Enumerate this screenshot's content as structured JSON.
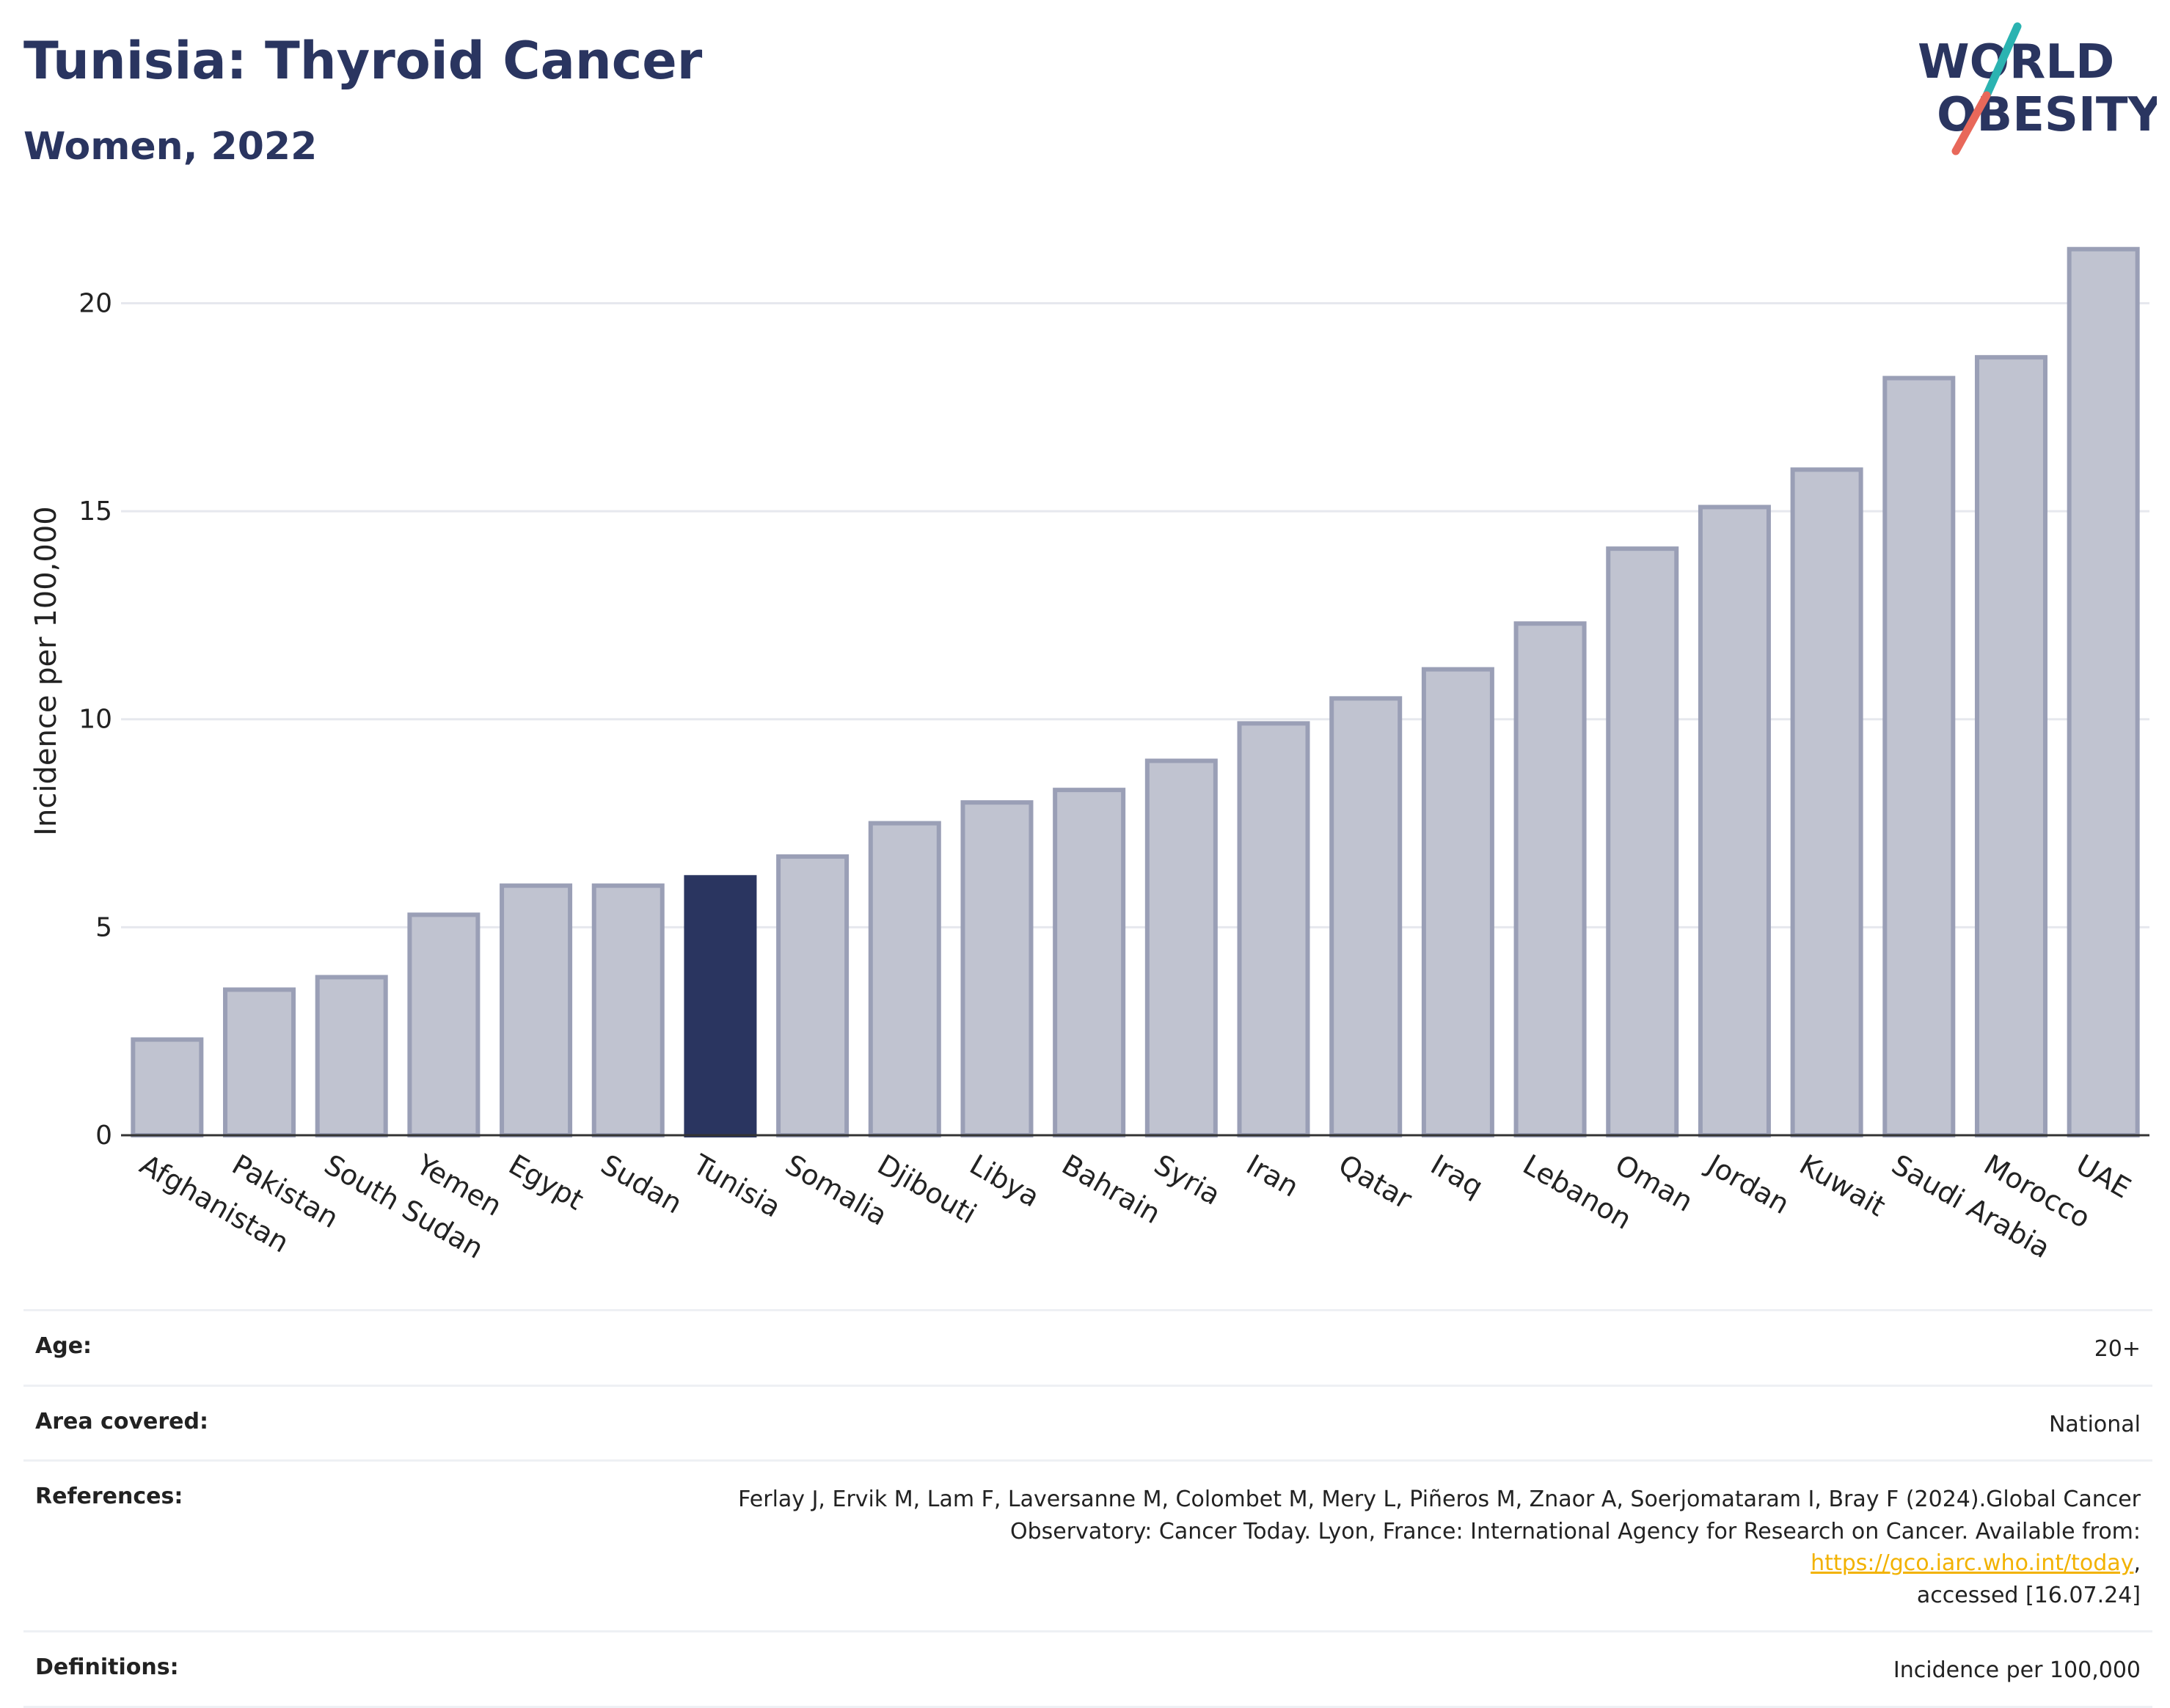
{
  "header": {
    "title": "Tunisia: Thyroid Cancer",
    "subtitle": "Women, 2022"
  },
  "logo": {
    "line1": "WORLD",
    "line2": "OBESITY",
    "colors": {
      "text": "#2a3560",
      "slash_top": "#2bb3b1",
      "slash_bottom": "#e8685a"
    }
  },
  "chart_data": {
    "type": "bar",
    "title": "Tunisia: Thyroid Cancer",
    "subtitle": "Women, 2022",
    "xlabel": "",
    "ylabel": "Incidence per 100,000",
    "ylim": [
      0,
      22
    ],
    "yticks": [
      0,
      5,
      10,
      15,
      20
    ],
    "grid": true,
    "highlight": "Tunisia",
    "colors": {
      "bar": "#c0c3d0",
      "bar_border": "#9a9fb6",
      "highlight": "#2a3560"
    },
    "categories": [
      "Afghanistan",
      "Pakistan",
      "South Sudan",
      "Yemen",
      "Egypt",
      "Sudan",
      "Tunisia",
      "Somalia",
      "Djibouti",
      "Libya",
      "Bahrain",
      "Syria",
      "Iran",
      "Qatar",
      "Iraq",
      "Lebanon",
      "Oman",
      "Jordan",
      "Kuwait",
      "Saudi Arabia",
      "Morocco",
      "UAE"
    ],
    "values": [
      2.3,
      3.5,
      3.8,
      5.3,
      6.0,
      6.0,
      6.2,
      6.7,
      7.5,
      8.0,
      8.3,
      9.0,
      9.9,
      10.5,
      11.2,
      12.3,
      14.1,
      15.1,
      16.0,
      18.2,
      18.7,
      21.3
    ]
  },
  "info": {
    "age": {
      "label": "Age:",
      "value": "20+"
    },
    "area": {
      "label": "Area covered:",
      "value": "National"
    },
    "references": {
      "label": "References:",
      "line1": "Ferlay J, Ervik M, Lam F, Laversanne M, Colombet M, Mery L, Piñeros M, Znaor A, Soerjomataram I, Bray F (2024).Global Cancer",
      "line2_prefix": "Observatory: Cancer Today. Lyon, France: International Agency for Research on Cancer. Available from: ",
      "link": "https://gco.iarc.who.int/today",
      "line2_suffix": ",",
      "line3": "accessed [16.07.24]"
    },
    "definitions": {
      "label": "Definitions:",
      "value": "Incidence per 100,000"
    }
  }
}
